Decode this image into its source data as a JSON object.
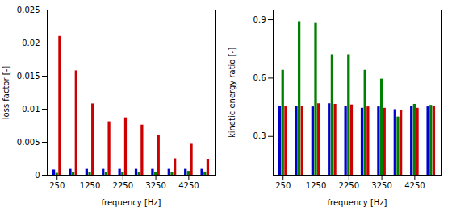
{
  "chart_data": [
    {
      "type": "bar",
      "x": [
        250,
        750,
        1250,
        1750,
        2250,
        2750,
        3250,
        3750,
        4250,
        4750
      ],
      "series": [
        {
          "color": "#0000cc",
          "values": [
            0.0008,
            0.0009,
            0.0009,
            0.0009,
            0.0009,
            0.0009,
            0.0009,
            0.0009,
            0.0009,
            0.0009
          ]
        },
        {
          "color": "#008000",
          "values": [
            0.0003,
            0.0004,
            0.0004,
            0.0004,
            0.0004,
            0.0004,
            0.0004,
            0.0004,
            0.0006,
            0.0005
          ]
        },
        {
          "color": "#cc0000",
          "values": [
            0.021,
            0.0158,
            0.0108,
            0.0081,
            0.0087,
            0.0076,
            0.0061,
            0.0025,
            0.0047,
            0.0024
          ]
        }
      ],
      "xlabel": "frequency [Hz]",
      "ylabel": "loss factor [-]",
      "xlim": [
        -50,
        5050
      ],
      "xticks": [
        250,
        1250,
        2250,
        3250,
        4250
      ],
      "ylim": [
        0,
        0.025
      ],
      "yticks": [
        0,
        0.005,
        0.01,
        0.015,
        0.02,
        0.025
      ]
    },
    {
      "type": "bar",
      "x": [
        250,
        750,
        1250,
        1750,
        2250,
        2750,
        3250,
        3750,
        4250,
        4750
      ],
      "series": [
        {
          "color": "#0000cc",
          "values": [
            0.455,
            0.455,
            0.452,
            0.468,
            0.455,
            0.445,
            0.452,
            0.438,
            0.455,
            0.452
          ]
        },
        {
          "color": "#008000",
          "values": [
            0.64,
            0.89,
            0.885,
            0.72,
            0.72,
            0.64,
            0.595,
            0.4,
            0.465,
            0.46
          ]
        },
        {
          "color": "#cc0000",
          "values": [
            0.455,
            0.455,
            0.468,
            0.465,
            0.462,
            0.452,
            0.445,
            0.432,
            0.445,
            0.455
          ]
        }
      ],
      "xlabel": "frequency [Hz]",
      "ylabel": "kinetic energy ratio [-]",
      "xlim": [
        -50,
        5050
      ],
      "xticks": [
        250,
        1250,
        2250,
        3250,
        4250
      ],
      "ylim": [
        0.1,
        0.95
      ],
      "yticks": [
        0.3,
        0.6,
        0.9
      ]
    }
  ]
}
